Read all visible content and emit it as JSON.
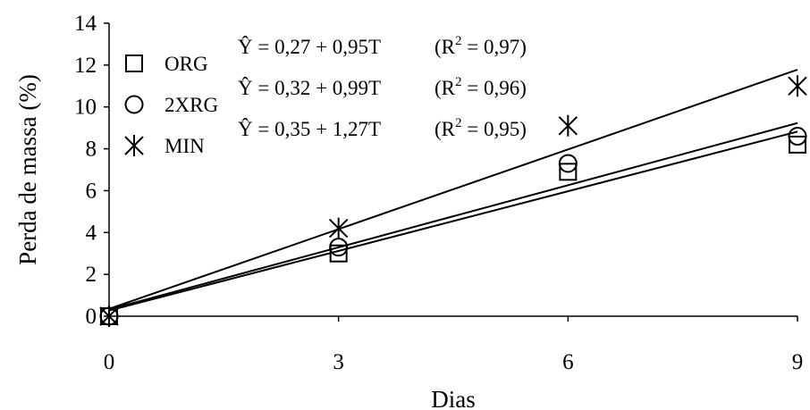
{
  "chart_data": {
    "type": "scatter",
    "xlabel": "Dias",
    "ylabel": "Perda de massa (%)",
    "xlim": [
      0,
      9
    ],
    "ylim": [
      0,
      14
    ],
    "xticks": [
      "0",
      "3",
      "6",
      "9"
    ],
    "yticks": [
      "0",
      "2",
      "4",
      "6",
      "8",
      "10",
      "12",
      "14"
    ],
    "grid": false,
    "legend_position": "top-left",
    "series": [
      {
        "name": "ORG",
        "marker": "square",
        "x": [
          0,
          3,
          6,
          9
        ],
        "y": [
          0,
          3.0,
          6.9,
          8.2
        ],
        "fit": {
          "intercept": 0.27,
          "slope": 0.95
        },
        "equation": "Ŷ = 0,27 + 0,95T",
        "r2_prefix": "(R",
        "r2_value": " = 0,97)"
      },
      {
        "name": "2XRG",
        "marker": "circle",
        "x": [
          0,
          3,
          6,
          9
        ],
        "y": [
          0,
          3.3,
          7.3,
          8.6
        ],
        "fit": {
          "intercept": 0.32,
          "slope": 0.99
        },
        "equation": "Ŷ = 0,32 + 0,99T",
        "r2_prefix": "(R",
        "r2_value": " = 0,96)"
      },
      {
        "name": "MIN",
        "marker": "star",
        "x": [
          0,
          3,
          6,
          9
        ],
        "y": [
          0,
          4.2,
          9.1,
          11.0
        ],
        "fit": {
          "intercept": 0.35,
          "slope": 1.27
        },
        "equation": "Ŷ = 0,35 + 1,27T",
        "r2_prefix": "(R",
        "r2_value": " = 0,95)"
      }
    ],
    "r2_superscript": "2"
  }
}
